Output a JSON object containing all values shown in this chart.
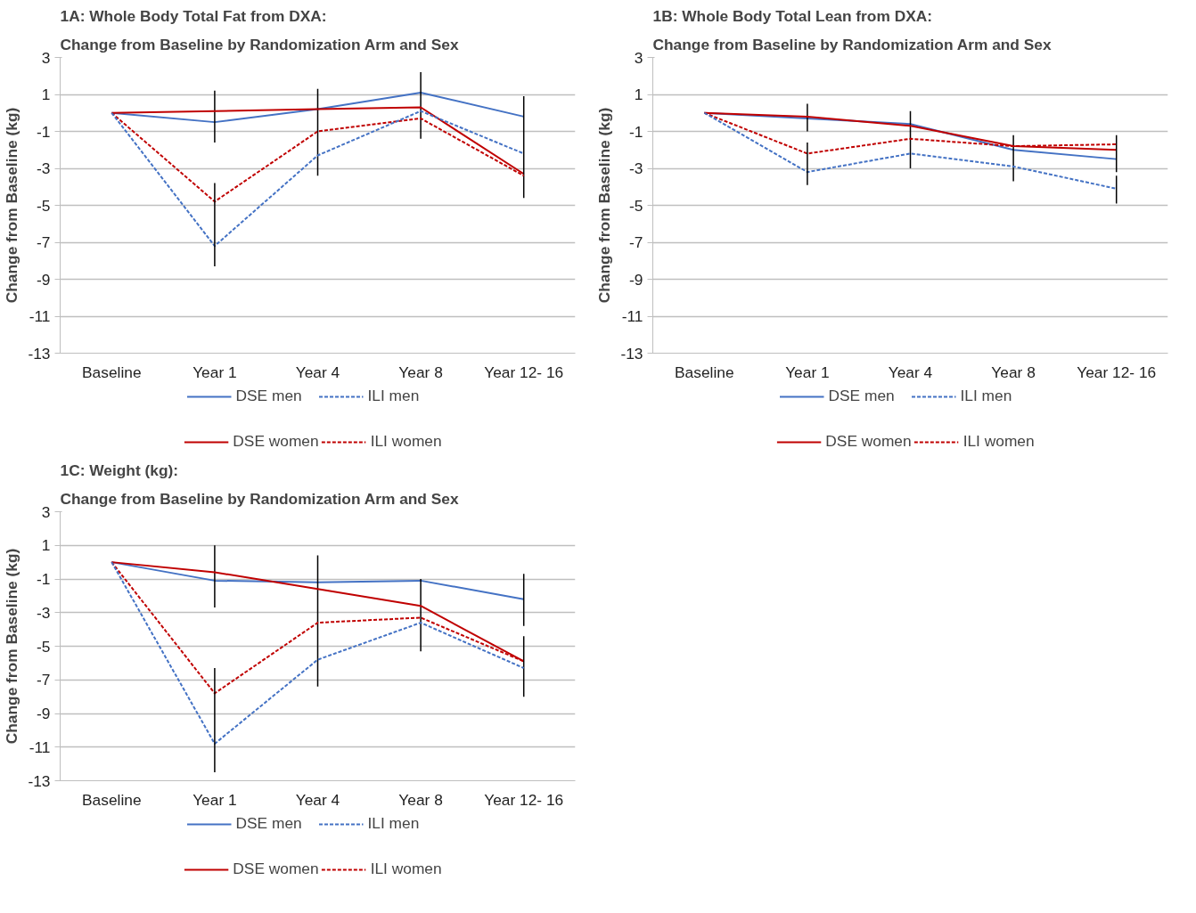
{
  "chart_data": [
    {
      "type": "line",
      "title": "1A: Whole Body Total Fat from DXA:",
      "subtitle": "Change from Baseline by Randomization Arm and Sex",
      "ylabel": "Change from Baseline (kg)",
      "categories": [
        "Baseline",
        "Year 1",
        "Year 4",
        "Year 8",
        "Year 12- 16"
      ],
      "ylim": [
        -13,
        3
      ],
      "yticks": [
        -13,
        -11,
        -9,
        -7,
        -5,
        -3,
        -1,
        1,
        3
      ],
      "grid": "y",
      "legend": "bottom",
      "marker": "none",
      "series": [
        {
          "name": "DSE men",
          "color": "#4472c4",
          "line_style": "solid",
          "values": [
            0,
            -0.5,
            0.2,
            1.1,
            -0.2
          ],
          "errors": [
            null,
            [
              -1.6,
              1.2
            ],
            [
              -3.4,
              1.3
            ],
            [
              -1.4,
              2.2
            ],
            null
          ]
        },
        {
          "name": "ILI men",
          "color": "#4472c4",
          "line_style": "dashed",
          "values": [
            0,
            -7.2,
            -2.3,
            0.1,
            -2.2
          ],
          "errors": [
            null,
            [
              -8.3,
              -3.8
            ],
            null,
            null,
            null
          ]
        },
        {
          "name": "DSE women",
          "color": "#c00000",
          "line_style": "solid",
          "values": [
            0,
            0.1,
            0.2,
            0.3,
            -3.3
          ],
          "errors": [
            null,
            null,
            null,
            null,
            [
              -4.6,
              0.9
            ]
          ]
        },
        {
          "name": "ILI women",
          "color": "#c00000",
          "line_style": "dashed",
          "values": [
            0,
            -4.8,
            -1.0,
            -0.3,
            -3.4
          ]
        }
      ]
    },
    {
      "type": "line",
      "title": "1B: Whole Body Total Lean from DXA:",
      "subtitle": "Change from Baseline by Randomization Arm and Sex",
      "ylabel": "Change from Baseline (kg)",
      "categories": [
        "Baseline",
        "Year 1",
        "Year 4",
        "Year 8",
        "Year 12- 16"
      ],
      "ylim": [
        -13,
        3
      ],
      "yticks": [
        -13,
        -11,
        -9,
        -7,
        -5,
        -3,
        -1,
        1,
        3
      ],
      "grid": "y",
      "legend": "bottom",
      "marker": "none",
      "series": [
        {
          "name": "DSE men",
          "color": "#4472c4",
          "line_style": "solid",
          "values": [
            0,
            -0.3,
            -0.6,
            -2.0,
            -2.5
          ],
          "errors": [
            null,
            [
              -1.0,
              0.5
            ],
            [
              -3.0,
              0.1
            ],
            [
              -3.7,
              -1.2
            ],
            null
          ]
        },
        {
          "name": "ILI men",
          "color": "#4472c4",
          "line_style": "dashed",
          "values": [
            0,
            -3.2,
            -2.2,
            -2.9,
            -4.1
          ],
          "errors": [
            null,
            [
              -3.9,
              -1.6
            ],
            null,
            null,
            [
              -4.9,
              -3.4
            ]
          ]
        },
        {
          "name": "DSE women",
          "color": "#c00000",
          "line_style": "solid",
          "values": [
            0,
            -0.2,
            -0.7,
            -1.8,
            -2.0
          ],
          "errors": [
            null,
            null,
            null,
            null,
            [
              -3.2,
              -1.2
            ]
          ]
        },
        {
          "name": "ILI women",
          "color": "#c00000",
          "line_style": "dashed",
          "values": [
            0,
            -2.2,
            -1.4,
            -1.8,
            -1.7
          ]
        }
      ]
    },
    {
      "type": "line",
      "title": "1C: Weight (kg):",
      "subtitle": "Change from Baseline by Randomization Arm and Sex",
      "ylabel": "Change from Baseline (kg)",
      "categories": [
        "Baseline",
        "Year 1",
        "Year 4",
        "Year 8",
        "Year 12- 16"
      ],
      "ylim": [
        -13,
        3
      ],
      "yticks": [
        -13,
        -11,
        -9,
        -7,
        -5,
        -3,
        -1,
        1,
        3
      ],
      "grid": "y",
      "legend": "bottom",
      "marker": "none",
      "series": [
        {
          "name": "DSE men",
          "color": "#4472c4",
          "line_style": "solid",
          "values": [
            0,
            -1.1,
            -1.2,
            -1.1,
            -2.2
          ],
          "errors": [
            null,
            [
              -2.7,
              1.0
            ],
            [
              -7.4,
              0.4
            ],
            [
              -5.3,
              -1.0
            ],
            [
              -3.8,
              -0.7
            ]
          ]
        },
        {
          "name": "ILI men",
          "color": "#4472c4",
          "line_style": "dashed",
          "values": [
            0,
            -10.8,
            -5.8,
            -3.6,
            -6.3
          ],
          "errors": [
            null,
            [
              -12.5,
              -6.3
            ],
            null,
            null,
            null
          ]
        },
        {
          "name": "DSE women",
          "color": "#c00000",
          "line_style": "solid",
          "values": [
            0,
            -0.6,
            -1.6,
            -2.6,
            -5.9
          ],
          "errors": [
            null,
            null,
            null,
            null,
            [
              -8.0,
              -4.4
            ]
          ]
        },
        {
          "name": "ILI women",
          "color": "#c00000",
          "line_style": "dashed",
          "values": [
            0,
            -7.8,
            -3.6,
            -3.3,
            -5.9
          ]
        }
      ]
    }
  ]
}
